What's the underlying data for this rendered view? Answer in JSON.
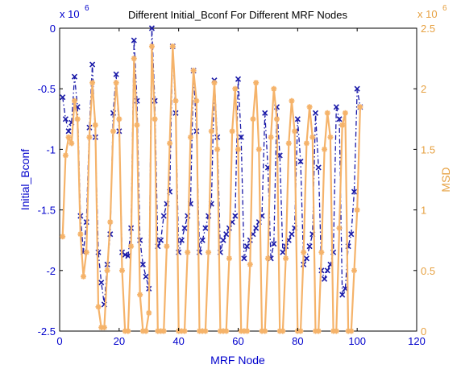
{
  "chart_data": {
    "type": "line",
    "title": "Different Initial_Bconf For Different MRF Nodes",
    "xlabel": "MRF Node",
    "ylabel_left": "Initial_Bconf",
    "ylabel_right": "MSD",
    "left_exponent": "x 10",
    "left_exponent_power": "6",
    "right_exponent": "x 10",
    "right_exponent_power": "6",
    "xlim": [
      0,
      120
    ],
    "ylim_left": [
      -2500000,
      0
    ],
    "ylim_right": [
      0,
      2500000
    ],
    "xticks": [
      0,
      20,
      40,
      60,
      80,
      100,
      120
    ],
    "xtick_labels": [
      "0",
      "20",
      "40",
      "60",
      "80",
      "100",
      "120"
    ],
    "yticks_left": [
      0,
      -500000,
      -1000000,
      -1500000,
      -2000000,
      -2500000
    ],
    "ytick_labels_left": [
      "0",
      "-0.5",
      "-1",
      "-1.5",
      "-2",
      "-2.5"
    ],
    "yticks_right": [
      0,
      500000,
      1000000,
      1500000,
      2000000,
      2500000
    ],
    "ytick_labels_right": [
      "0",
      "0.5",
      "1",
      "1.5",
      "2",
      "2.5"
    ],
    "colors": {
      "left_axis": "#0000cc",
      "right_axis": "#e6a040",
      "series_left": "#1a1aa8",
      "series_right": "#f5b36a"
    },
    "series": [
      {
        "axis": "left",
        "marker": "x",
        "line": "dashdot",
        "x": [
          1,
          2,
          3,
          4,
          5,
          6,
          7,
          8,
          9,
          10,
          11,
          12,
          13,
          14,
          15,
          16,
          17,
          18,
          19,
          20,
          21,
          22,
          23,
          24,
          25,
          26,
          27,
          28,
          29,
          30,
          31,
          32,
          33,
          34,
          35,
          36,
          37,
          38,
          39,
          40,
          41,
          42,
          43,
          44,
          45,
          46,
          47,
          48,
          49,
          50,
          51,
          52,
          53,
          54,
          55,
          56,
          57,
          58,
          59,
          60,
          61,
          62,
          63,
          64,
          65,
          66,
          67,
          68,
          69,
          70,
          71,
          72,
          73,
          74,
          75,
          76,
          77,
          78,
          79,
          80,
          81,
          82,
          83,
          84,
          85,
          86,
          87,
          88,
          89,
          90,
          91,
          92,
          93,
          94,
          95,
          96,
          97,
          98,
          99,
          100,
          101
        ],
        "y": [
          -570000,
          -750000,
          -850000,
          -780000,
          -400000,
          -650000,
          -1550000,
          -1850000,
          -1600000,
          -820000,
          -300000,
          -900000,
          -1850000,
          -2100000,
          -2280000,
          -1950000,
          -1700000,
          -700000,
          -380000,
          -850000,
          -1850000,
          -1870000,
          -1880000,
          -1650000,
          -100000,
          -600000,
          -1750000,
          -1950000,
          -2050000,
          -2150000,
          0,
          -600000,
          -1800000,
          -1750000,
          -1550000,
          -1450000,
          -1350000,
          -150000,
          -700000,
          -1850000,
          -1750000,
          -1650000,
          -1550000,
          -1450000,
          -350000,
          -850000,
          -1850000,
          -1750000,
          -1650000,
          -1550000,
          -1450000,
          -430000,
          -900000,
          -1850000,
          -1750000,
          -1700000,
          -1650000,
          -1600000,
          -1550000,
          -420000,
          -900000,
          -1900000,
          -1800000,
          -1750000,
          -1700000,
          -1650000,
          -1600000,
          -1550000,
          -700000,
          -1150000,
          -1900000,
          -1780000,
          -650000,
          -1050000,
          -1850000,
          -1800000,
          -1750000,
          -1700000,
          -1650000,
          -750000,
          -1100000,
          -1950000,
          -1900000,
          -1800000,
          -1700000,
          -700000,
          -1150000,
          -2000000,
          -2070000,
          -2000000,
          -1950000,
          -1850000,
          -650000,
          -750000,
          -2200000,
          -2150000,
          -1800000,
          -1700000,
          -1350000,
          -500000,
          -650000
        ]
      },
      {
        "axis": "right",
        "marker": "*",
        "line": "solid",
        "x": [
          1,
          2,
          3,
          4,
          5,
          6,
          7,
          8,
          9,
          10,
          11,
          12,
          13,
          14,
          15,
          16,
          17,
          18,
          19,
          20,
          21,
          22,
          23,
          24,
          25,
          26,
          27,
          28,
          29,
          30,
          31,
          32,
          33,
          34,
          35,
          36,
          37,
          38,
          39,
          40,
          41,
          42,
          43,
          44,
          45,
          46,
          47,
          48,
          49,
          50,
          51,
          52,
          53,
          54,
          55,
          56,
          57,
          58,
          59,
          60,
          61,
          62,
          63,
          64,
          65,
          66,
          67,
          68,
          69,
          70,
          71,
          72,
          73,
          74,
          75,
          76,
          77,
          78,
          79,
          80,
          81,
          82,
          83,
          84,
          85,
          86,
          87,
          88,
          89,
          90,
          91,
          92,
          93,
          94,
          95,
          96,
          97,
          98,
          99,
          100,
          101
        ],
        "y": [
          780000,
          1450000,
          1600000,
          1550000,
          1900000,
          1750000,
          800000,
          450000,
          650000,
          1600000,
          2050000,
          1700000,
          200000,
          30000,
          30000,
          500000,
          900000,
          1650000,
          2050000,
          1750000,
          500000,
          0,
          0,
          700000,
          2250000,
          1700000,
          300000,
          0,
          0,
          150000,
          2350000,
          1750000,
          0,
          0,
          0,
          700000,
          1550000,
          2350000,
          1900000,
          0,
          0,
          0,
          650000,
          1600000,
          2150000,
          1900000,
          0,
          0,
          0,
          650000,
          1650000,
          2050000,
          1500000,
          0,
          0,
          0,
          600000,
          1650000,
          2000000,
          1500000,
          0,
          0,
          0,
          550000,
          1750000,
          2050000,
          1500000,
          0,
          0,
          600000,
          1600000,
          2000000,
          1750000,
          0,
          0,
          600000,
          1550000,
          1900000,
          1650000,
          0,
          0,
          650000,
          1550000,
          1850000,
          1600000,
          0,
          0,
          650000,
          1500000,
          1800000,
          1600000,
          0,
          0,
          850000,
          1700000,
          1800000,
          0,
          0,
          500000,
          1000000,
          1850000
        ]
      }
    ]
  }
}
